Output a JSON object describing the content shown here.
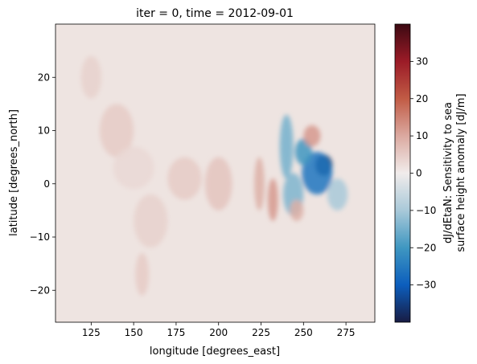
{
  "chart_data": {
    "type": "heatmap",
    "title": "iter = 0, time = 2012-09-01",
    "xlabel": "longitude [degrees_east]",
    "ylabel": "latitude [degrees_north]",
    "xlim": [
      104,
      292
    ],
    "ylim": [
      -26,
      30
    ],
    "xticks": [
      125,
      150,
      175,
      200,
      225,
      250,
      275
    ],
    "yticks": [
      -20,
      -10,
      0,
      10,
      20
    ],
    "colorbar": {
      "label_line1": "dJ/dEtaN: Sensitivity to sea",
      "label_line2": "surface height anomaly [dJ/m]",
      "vmin": -40,
      "vmax": 40,
      "ticks": [
        -30,
        -20,
        -10,
        0,
        10,
        20,
        30
      ],
      "colormap": "balance",
      "stops": [
        "#181c43",
        "#0c5ebd",
        "#3f97c1",
        "#a9c9d9",
        "#f1eceb",
        "#dba9a0",
        "#c15b45",
        "#9b1b27",
        "#3c0912"
      ]
    },
    "features": [
      {
        "lon": 262,
        "lat": 3.5,
        "value": -38,
        "r_lon": 5,
        "r_lat": 2
      },
      {
        "lon": 258,
        "lat": 2,
        "value": -26,
        "r_lon": 9,
        "r_lat": 4
      },
      {
        "lon": 250,
        "lat": 6,
        "value": -20,
        "r_lon": 5,
        "r_lat": 2.5
      },
      {
        "lon": 240,
        "lat": 7,
        "value": -15,
        "r_lon": 4,
        "r_lat": 6
      },
      {
        "lon": 244,
        "lat": -2,
        "value": -14,
        "r_lon": 6,
        "r_lat": 4
      },
      {
        "lon": 270,
        "lat": -2,
        "value": -10,
        "r_lon": 6,
        "r_lat": 3
      },
      {
        "lon": 255,
        "lat": 9,
        "value": 12,
        "r_lon": 5,
        "r_lat": 2
      },
      {
        "lon": 232,
        "lat": -3,
        "value": 12,
        "r_lon": 3,
        "r_lat": 4
      },
      {
        "lon": 224,
        "lat": 0,
        "value": 9,
        "r_lon": 3,
        "r_lat": 5
      },
      {
        "lon": 246,
        "lat": -5,
        "value": 9,
        "r_lon": 4,
        "r_lat": 2
      },
      {
        "lon": 200,
        "lat": 0,
        "value": 6,
        "r_lon": 8,
        "r_lat": 5
      },
      {
        "lon": 180,
        "lat": 1,
        "value": 5,
        "r_lon": 10,
        "r_lat": 4
      },
      {
        "lon": 140,
        "lat": 10,
        "value": 5,
        "r_lon": 10,
        "r_lat": 5
      },
      {
        "lon": 125,
        "lat": 20,
        "value": 4,
        "r_lon": 6,
        "r_lat": 4
      },
      {
        "lon": 160,
        "lat": -7,
        "value": 4,
        "r_lon": 10,
        "r_lat": 5
      },
      {
        "lon": 155,
        "lat": -17,
        "value": 5,
        "r_lon": 4,
        "r_lat": 4
      },
      {
        "lon": 150,
        "lat": 3,
        "value": 3,
        "r_lon": 12,
        "r_lat": 4
      }
    ]
  }
}
